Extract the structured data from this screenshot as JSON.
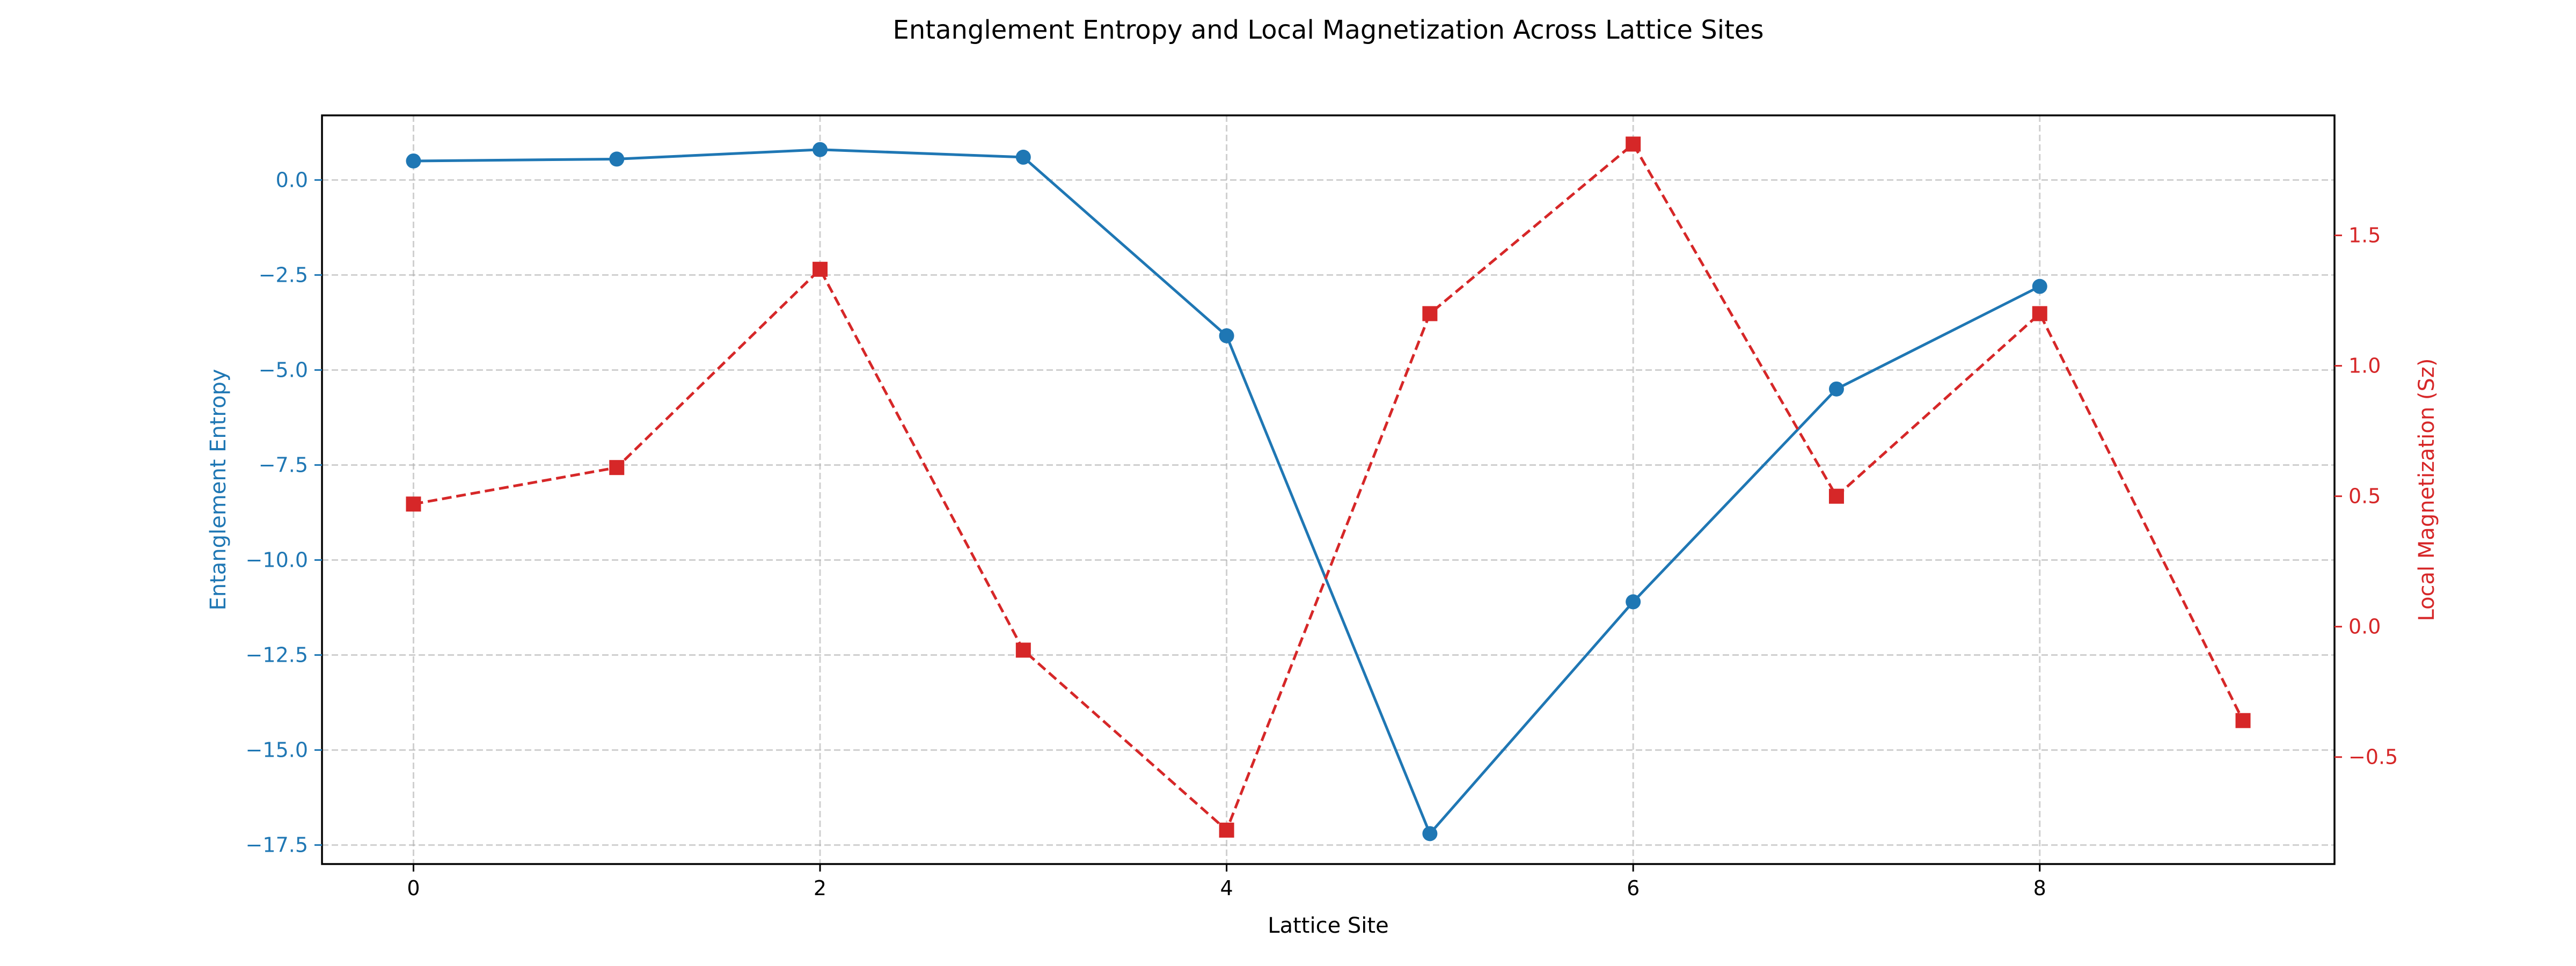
{
  "chart_data": {
    "type": "line",
    "title": "Entanglement Entropy and Local Magnetization Across Lattice Sites",
    "xlabel": "Lattice Site",
    "xlim": [
      -0.45,
      9.45
    ],
    "xticks": [
      0,
      2,
      4,
      6,
      8
    ],
    "grid": true,
    "axes": {
      "left": {
        "label": "Entanglement Entropy",
        "color": "#1f77b4",
        "ylim": [
          -18.0,
          1.7
        ],
        "ticks": [
          0.0,
          -2.5,
          -5.0,
          -7.5,
          -10.0,
          -12.5,
          -15.0,
          -17.5
        ],
        "tick_labels": [
          "0.0",
          "−2.5",
          "−5.0",
          "−7.5",
          "−10.0",
          "−12.5",
          "−15.0",
          "−17.5"
        ]
      },
      "right": {
        "label": "Local Magnetization (Sz)",
        "color": "#d62728",
        "ylim": [
          -0.91,
          1.96
        ],
        "ticks": [
          -0.5,
          0.0,
          0.5,
          1.0,
          1.5
        ],
        "tick_labels": [
          "−0.5",
          "0.0",
          "0.5",
          "1.0",
          "1.5"
        ]
      }
    },
    "series": [
      {
        "axis": "left",
        "marker": "circle",
        "line_style": "solid",
        "color": "#1f77b4",
        "x": [
          0,
          1,
          2,
          3,
          4,
          5,
          6,
          7,
          8
        ],
        "y": [
          0.5,
          0.55,
          0.8,
          0.6,
          -4.1,
          -17.2,
          -11.1,
          -5.5,
          -2.8
        ]
      },
      {
        "axis": "right",
        "marker": "square",
        "line_style": "dashed",
        "color": "#d62728",
        "x": [
          0,
          1,
          2,
          3,
          4,
          5,
          6,
          7,
          8,
          9
        ],
        "y": [
          0.47,
          0.61,
          1.37,
          -0.09,
          -0.78,
          1.2,
          1.85,
          0.5,
          1.2,
          -0.36
        ]
      }
    ]
  }
}
